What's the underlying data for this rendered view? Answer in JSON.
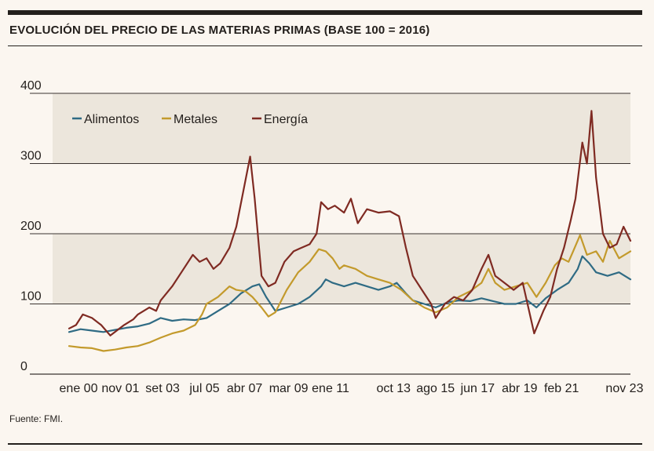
{
  "title": "EVOLUCIÓN DEL PRECIO DE LAS MATERIAS PRIMAS (BASE 100 = 2016)",
  "source": "Fuente: FMI.",
  "colors": {
    "band": "#ece6dc",
    "grid": "#3a3330",
    "Alimentos": "#2f6b84",
    "Metales": "#c39a2c",
    "Energía": "#7f2a22"
  },
  "chart_data": {
    "type": "line",
    "title": "EVOLUCIÓN DEL PRECIO DE LAS MATERIAS PRIMAS (BASE 100 = 2016)",
    "xlabel": "",
    "ylabel": "",
    "ylim": [
      0,
      400
    ],
    "yticks": [
      0,
      100,
      200,
      300,
      400
    ],
    "xlim": [
      2000.0,
      2024.5
    ],
    "xticks": [
      {
        "label": "ene 00",
        "x": 2000.0
      },
      {
        "label": "nov 01",
        "x": 2001.83
      },
      {
        "label": "set 03",
        "x": 2003.67
      },
      {
        "label": "jul 05",
        "x": 2005.5
      },
      {
        "label": "abr 07",
        "x": 2007.25
      },
      {
        "label": "mar 09",
        "x": 2009.17
      },
      {
        "label": "ene 11",
        "x": 2011.0
      },
      {
        "label": "oct 13",
        "x": 2013.75
      },
      {
        "label": "ago 15",
        "x": 2015.58
      },
      {
        "label": "jun 17",
        "x": 2017.42
      },
      {
        "label": "abr 19",
        "x": 2019.25
      },
      {
        "label": "feb 21",
        "x": 2021.08
      },
      {
        "label": "nov 23",
        "x": 2023.83
      }
    ],
    "shaded_bands": [
      [
        300,
        400
      ],
      [
        100,
        200
      ]
    ],
    "legend": {
      "placement": "top-left",
      "entries": [
        "Alimentos",
        "Metales",
        "Energía"
      ]
    },
    "series": [
      {
        "name": "Alimentos",
        "points": [
          [
            2000.0,
            60
          ],
          [
            2000.5,
            64
          ],
          [
            2001.0,
            62
          ],
          [
            2001.5,
            60
          ],
          [
            2002.0,
            63
          ],
          [
            2002.5,
            66
          ],
          [
            2003.0,
            68
          ],
          [
            2003.5,
            72
          ],
          [
            2004.0,
            80
          ],
          [
            2004.5,
            76
          ],
          [
            2005.0,
            78
          ],
          [
            2005.5,
            77
          ],
          [
            2006.0,
            80
          ],
          [
            2006.5,
            90
          ],
          [
            2007.0,
            100
          ],
          [
            2007.5,
            115
          ],
          [
            2008.0,
            125
          ],
          [
            2008.3,
            128
          ],
          [
            2008.6,
            110
          ],
          [
            2009.0,
            90
          ],
          [
            2009.5,
            95
          ],
          [
            2010.0,
            100
          ],
          [
            2010.5,
            110
          ],
          [
            2011.0,
            125
          ],
          [
            2011.2,
            135
          ],
          [
            2011.5,
            130
          ],
          [
            2012.0,
            125
          ],
          [
            2012.5,
            130
          ],
          [
            2013.0,
            125
          ],
          [
            2013.5,
            120
          ],
          [
            2014.0,
            125
          ],
          [
            2014.3,
            130
          ],
          [
            2014.7,
            115
          ],
          [
            2015.0,
            105
          ],
          [
            2015.5,
            100
          ],
          [
            2016.0,
            95
          ],
          [
            2016.5,
            102
          ],
          [
            2017.0,
            105
          ],
          [
            2017.5,
            104
          ],
          [
            2018.0,
            108
          ],
          [
            2018.5,
            104
          ],
          [
            2019.0,
            100
          ],
          [
            2019.5,
            100
          ],
          [
            2020.0,
            105
          ],
          [
            2020.4,
            95
          ],
          [
            2020.8,
            108
          ],
          [
            2021.3,
            120
          ],
          [
            2021.8,
            130
          ],
          [
            2022.2,
            150
          ],
          [
            2022.4,
            168
          ],
          [
            2022.7,
            158
          ],
          [
            2023.0,
            145
          ],
          [
            2023.5,
            140
          ],
          [
            2024.0,
            145
          ],
          [
            2024.5,
            135
          ]
        ]
      },
      {
        "name": "Metales",
        "points": [
          [
            2000.0,
            40
          ],
          [
            2000.5,
            38
          ],
          [
            2001.0,
            37
          ],
          [
            2001.5,
            33
          ],
          [
            2002.0,
            35
          ],
          [
            2002.5,
            38
          ],
          [
            2003.0,
            40
          ],
          [
            2003.5,
            45
          ],
          [
            2004.0,
            52
          ],
          [
            2004.5,
            58
          ],
          [
            2005.0,
            62
          ],
          [
            2005.5,
            70
          ],
          [
            2005.8,
            85
          ],
          [
            2006.0,
            100
          ],
          [
            2006.5,
            110
          ],
          [
            2007.0,
            125
          ],
          [
            2007.3,
            120
          ],
          [
            2007.7,
            118
          ],
          [
            2008.0,
            110
          ],
          [
            2008.4,
            95
          ],
          [
            2008.7,
            82
          ],
          [
            2009.0,
            88
          ],
          [
            2009.5,
            120
          ],
          [
            2010.0,
            145
          ],
          [
            2010.5,
            160
          ],
          [
            2010.9,
            178
          ],
          [
            2011.2,
            175
          ],
          [
            2011.5,
            165
          ],
          [
            2011.8,
            150
          ],
          [
            2012.0,
            155
          ],
          [
            2012.5,
            150
          ],
          [
            2013.0,
            140
          ],
          [
            2013.5,
            135
          ],
          [
            2014.0,
            130
          ],
          [
            2014.5,
            120
          ],
          [
            2015.0,
            105
          ],
          [
            2015.5,
            95
          ],
          [
            2016.0,
            88
          ],
          [
            2016.5,
            95
          ],
          [
            2017.0,
            110
          ],
          [
            2017.5,
            118
          ],
          [
            2018.0,
            130
          ],
          [
            2018.3,
            150
          ],
          [
            2018.6,
            130
          ],
          [
            2019.0,
            120
          ],
          [
            2019.5,
            125
          ],
          [
            2020.0,
            130
          ],
          [
            2020.4,
            110
          ],
          [
            2020.8,
            130
          ],
          [
            2021.2,
            155
          ],
          [
            2021.5,
            165
          ],
          [
            2021.8,
            160
          ],
          [
            2022.0,
            175
          ],
          [
            2022.3,
            198
          ],
          [
            2022.6,
            170
          ],
          [
            2023.0,
            175
          ],
          [
            2023.3,
            160
          ],
          [
            2023.6,
            190
          ],
          [
            2024.0,
            165
          ],
          [
            2024.5,
            175
          ]
        ]
      },
      {
        "name": "Energía",
        "points": [
          [
            2000.0,
            65
          ],
          [
            2000.3,
            70
          ],
          [
            2000.6,
            85
          ],
          [
            2001.0,
            80
          ],
          [
            2001.4,
            70
          ],
          [
            2001.8,
            55
          ],
          [
            2002.0,
            60
          ],
          [
            2002.4,
            70
          ],
          [
            2002.8,
            78
          ],
          [
            2003.0,
            85
          ],
          [
            2003.5,
            95
          ],
          [
            2003.8,
            90
          ],
          [
            2004.0,
            105
          ],
          [
            2004.5,
            125
          ],
          [
            2005.0,
            150
          ],
          [
            2005.4,
            170
          ],
          [
            2005.7,
            160
          ],
          [
            2006.0,
            165
          ],
          [
            2006.3,
            150
          ],
          [
            2006.6,
            158
          ],
          [
            2007.0,
            180
          ],
          [
            2007.3,
            210
          ],
          [
            2007.6,
            260
          ],
          [
            2007.9,
            310
          ],
          [
            2008.1,
            250
          ],
          [
            2008.4,
            140
          ],
          [
            2008.7,
            125
          ],
          [
            2009.0,
            130
          ],
          [
            2009.4,
            160
          ],
          [
            2009.8,
            175
          ],
          [
            2010.0,
            178
          ],
          [
            2010.5,
            185
          ],
          [
            2010.8,
            200
          ],
          [
            2011.0,
            245
          ],
          [
            2011.3,
            235
          ],
          [
            2011.6,
            240
          ],
          [
            2012.0,
            230
          ],
          [
            2012.3,
            250
          ],
          [
            2012.6,
            215
          ],
          [
            2013.0,
            235
          ],
          [
            2013.5,
            230
          ],
          [
            2014.0,
            232
          ],
          [
            2014.4,
            225
          ],
          [
            2014.7,
            180
          ],
          [
            2015.0,
            140
          ],
          [
            2015.4,
            120
          ],
          [
            2015.8,
            100
          ],
          [
            2016.0,
            80
          ],
          [
            2016.4,
            100
          ],
          [
            2016.8,
            110
          ],
          [
            2017.2,
            105
          ],
          [
            2017.6,
            120
          ],
          [
            2018.0,
            150
          ],
          [
            2018.3,
            170
          ],
          [
            2018.6,
            140
          ],
          [
            2019.0,
            130
          ],
          [
            2019.4,
            120
          ],
          [
            2019.8,
            130
          ],
          [
            2020.3,
            58
          ],
          [
            2020.7,
            90
          ],
          [
            2021.0,
            110
          ],
          [
            2021.3,
            150
          ],
          [
            2021.6,
            180
          ],
          [
            2021.9,
            220
          ],
          [
            2022.1,
            250
          ],
          [
            2022.4,
            330
          ],
          [
            2022.6,
            300
          ],
          [
            2022.8,
            375
          ],
          [
            2023.0,
            280
          ],
          [
            2023.3,
            200
          ],
          [
            2023.6,
            180
          ],
          [
            2023.9,
            185
          ],
          [
            2024.2,
            210
          ],
          [
            2024.5,
            190
          ]
        ]
      }
    ]
  }
}
